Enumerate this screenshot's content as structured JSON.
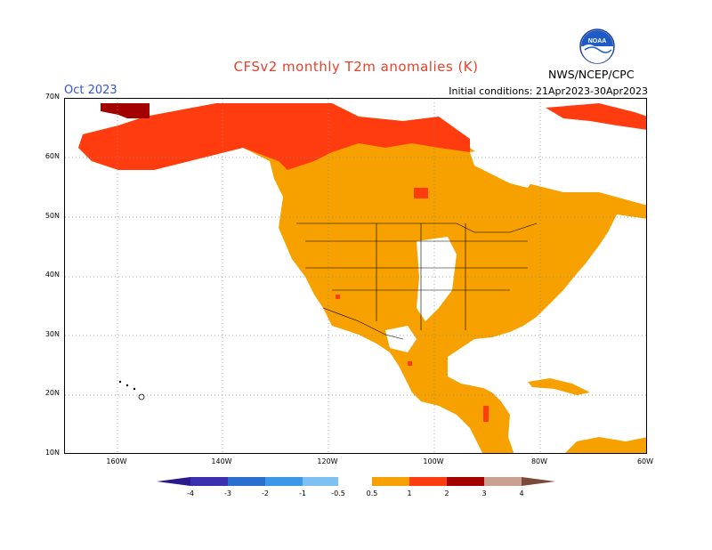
{
  "title": "CFSv2 monthly T2m anomalies (K)",
  "month": "Oct 2023",
  "initial_conditions": "Initial conditions: 21Apr2023-30Apr2023",
  "agency": "NWS/NCEP/CPC",
  "logo_text": "NOAA",
  "lat_labels": [
    "70N",
    "60N",
    "50N",
    "40N",
    "30N",
    "20N",
    "10N"
  ],
  "lon_labels": [
    "160W",
    "140W",
    "120W",
    "100W",
    "80W",
    "60W"
  ],
  "colorbar": {
    "ticks": [
      "-4",
      "-3",
      "-2",
      "-1",
      "-0.5",
      "0.5",
      "1",
      "2",
      "3",
      "4"
    ],
    "colors": {
      "lt_neg4": "#2a1a8c",
      "neg4_neg3": "#3b2fb0",
      "neg3_neg2": "#2a6ed0",
      "neg2_neg1": "#3c98e6",
      "neg1_neg05": "#7ec0f2",
      "neutral": "#ffffff",
      "p05_p1": "#f7a100",
      "p1_p2": "#ff3c10",
      "p2_p3": "#a30000",
      "p3_p4": "#c8a090",
      "gt_p4": "#7a4a3a"
    }
  }
}
